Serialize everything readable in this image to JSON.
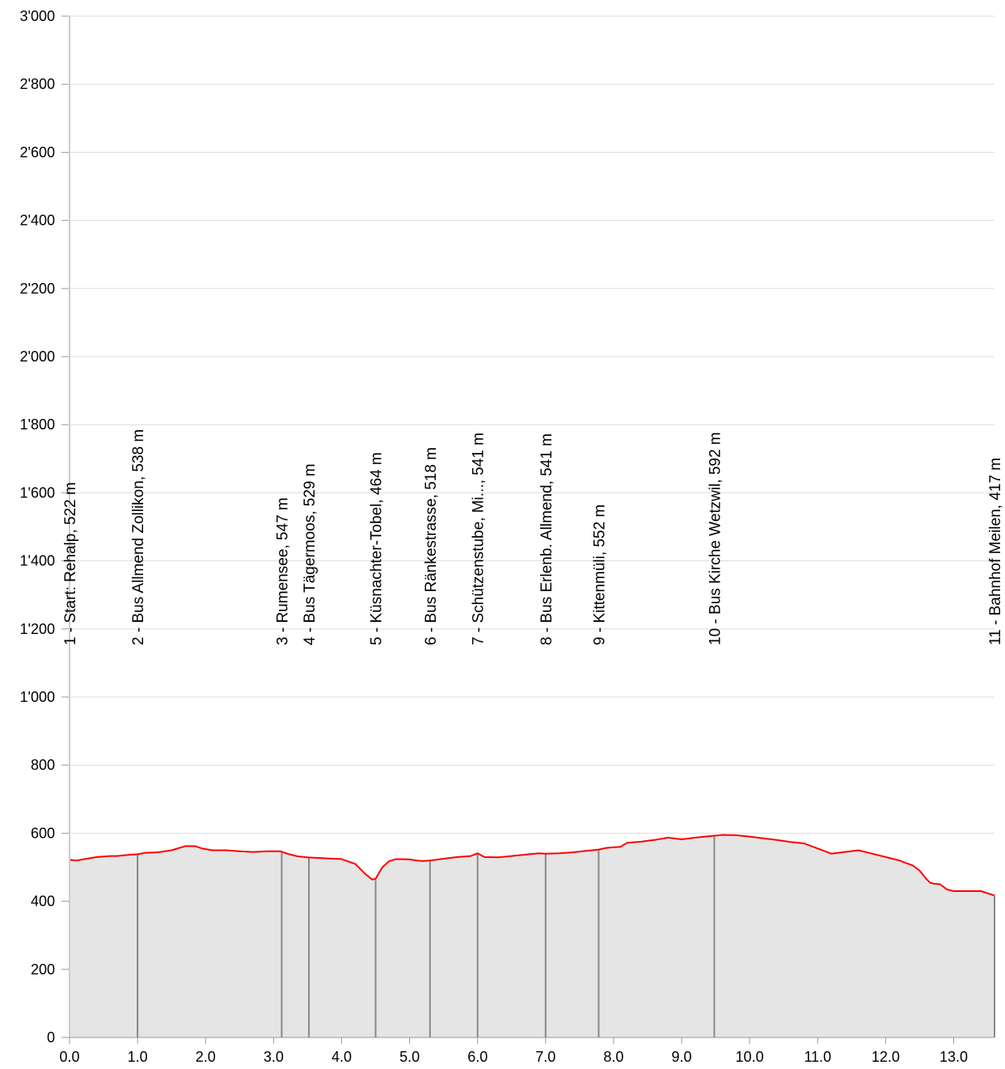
{
  "chart_data": {
    "type": "area",
    "title": "",
    "xlabel": "",
    "ylabel": "",
    "xlim": [
      0,
      13.6
    ],
    "ylim": [
      0,
      3000
    ],
    "grid": true,
    "colors": {
      "line": "#ff0000",
      "fill": "#e5e5e5",
      "waypoint": "#888888",
      "grid": "#dddddd"
    },
    "x_ticks": [
      "0.0",
      "1.0",
      "2.0",
      "3.0",
      "4.0",
      "5.0",
      "6.0",
      "7.0",
      "8.0",
      "9.0",
      "10.0",
      "11.0",
      "12.0",
      "13.0"
    ],
    "y_ticks": [
      "0",
      "200",
      "400",
      "600",
      "800",
      "1'000",
      "1'200",
      "1'400",
      "1'600",
      "1'800",
      "2'000",
      "2'200",
      "2'400",
      "2'600",
      "2'800",
      "3'000"
    ],
    "series": [
      {
        "x": [
          0,
          0.1,
          0.2,
          0.4,
          0.6,
          0.7,
          0.9,
          1.0,
          1.1,
          1.3,
          1.5,
          1.7,
          1.85,
          1.95,
          2.1,
          2.3,
          2.5,
          2.7,
          2.9,
          3.1,
          3.2,
          3.35,
          3.5,
          3.6,
          3.8,
          4.0,
          4.2,
          4.35,
          4.45,
          4.5,
          4.6,
          4.7,
          4.8,
          5.0,
          5.1,
          5.2,
          5.3,
          5.5,
          5.7,
          5.9,
          6.0,
          6.1,
          6.3,
          6.5,
          6.7,
          6.9,
          7.0,
          7.2,
          7.4,
          7.6,
          7.78,
          7.9,
          8.1,
          8.2,
          8.4,
          8.6,
          8.8,
          9.0,
          9.2,
          9.45,
          9.6,
          9.8,
          10.0,
          10.2,
          10.4,
          10.6,
          10.8,
          11.0,
          11.2,
          11.4,
          11.6,
          11.8,
          12.0,
          12.2,
          12.4,
          12.5,
          12.6,
          12.65,
          12.7,
          12.8,
          12.9,
          13.0,
          13.2,
          13.4,
          13.6
        ],
        "y": [
          522,
          520,
          523,
          530,
          533,
          533,
          537,
          538,
          542,
          544,
          550,
          562,
          562,
          555,
          550,
          550,
          547,
          545,
          547,
          547,
          540,
          532,
          529,
          528,
          526,
          524,
          510,
          480,
          464,
          466,
          500,
          518,
          524,
          523,
          520,
          518,
          520,
          525,
          530,
          533,
          541,
          530,
          529,
          533,
          537,
          541,
          540,
          541,
          544,
          548,
          552,
          557,
          560,
          572,
          575,
          580,
          587,
          582,
          587,
          592,
          595,
          594,
          590,
          585,
          580,
          574,
          570,
          555,
          540,
          545,
          550,
          540,
          530,
          520,
          505,
          490,
          465,
          455,
          452,
          450,
          435,
          430,
          430,
          430,
          417
        ]
      }
    ],
    "waypoints": [
      {
        "x": 0.0,
        "elevation": 522,
        "label": "1 - Start: Rehalp, 522 m"
      },
      {
        "x": 1.0,
        "elevation": 538,
        "label": "2 - Bus Allmend Zollikon, 538 m"
      },
      {
        "x": 3.12,
        "elevation": 547,
        "label": "3 - Rumensee, 547 m"
      },
      {
        "x": 3.52,
        "elevation": 529,
        "label": "4 - Bus Tägermoos, 529 m"
      },
      {
        "x": 4.5,
        "elevation": 464,
        "label": "5 - Küsnachter-Tobel, 464 m"
      },
      {
        "x": 5.3,
        "elevation": 518,
        "label": "6 - Bus Ränkestrasse, 518 m"
      },
      {
        "x": 6.0,
        "elevation": 541,
        "label": "7 - Schützenstube, Mi..., 541 m"
      },
      {
        "x": 7.0,
        "elevation": 541,
        "label": "8 - Bus Erlenb. Allmend, 541 m"
      },
      {
        "x": 7.78,
        "elevation": 552,
        "label": "9 - Kittenmüli, 552 m"
      },
      {
        "x": 9.48,
        "elevation": 592,
        "label": "10 - Bus Kirche Wetzwil, 592 m"
      },
      {
        "x": 13.6,
        "elevation": 417,
        "label": "11 - Bahnhof Meilen, 417 m"
      }
    ]
  }
}
